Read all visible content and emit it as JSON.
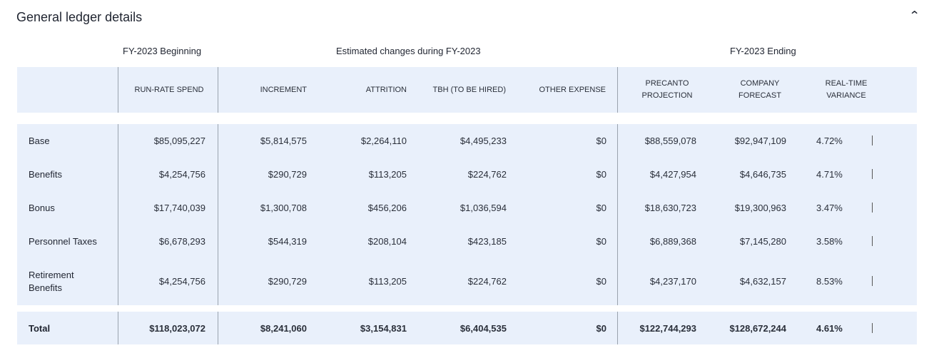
{
  "section": {
    "title": "General ledger details",
    "collapse_icon": "chevron-up-icon"
  },
  "groups": {
    "beginning": "FY-2023 Beginning",
    "changes": "Estimated changes during FY-2023",
    "ending": "FY-2023 Ending"
  },
  "columns": [
    "RUN-RATE SPEND",
    "INCREMENT",
    "ATTRITION",
    "TBH (TO BE HIRED)",
    "OTHER EXPENSE",
    "PRECANTO PROJECTION",
    "COMPANY FORECAST",
    "REAL-TIME VARIANCE"
  ],
  "columns_split": {
    "precanto": [
      "PRECANTO",
      "PROJECTION"
    ],
    "company": [
      "COMPANY",
      "FORECAST"
    ],
    "variance": [
      "REAL-TIME",
      "VARIANCE"
    ]
  },
  "rows": [
    {
      "label": "Base",
      "values": [
        "$85,095,227",
        "$5,814,575",
        "$2,264,110",
        "$4,495,233",
        "$0",
        "$88,559,078",
        "$92,947,109",
        "4.72%"
      ]
    },
    {
      "label": "Benefits",
      "values": [
        "$4,254,756",
        "$290,729",
        "$113,205",
        "$224,762",
        "$0",
        "$4,427,954",
        "$4,646,735",
        "4.71%"
      ]
    },
    {
      "label": "Bonus",
      "values": [
        "$17,740,039",
        "$1,300,708",
        "$456,206",
        "$1,036,594",
        "$0",
        "$18,630,723",
        "$19,300,963",
        "3.47%"
      ]
    },
    {
      "label": "Personnel Taxes",
      "values": [
        "$6,678,293",
        "$544,319",
        "$208,104",
        "$423,185",
        "$0",
        "$6,889,368",
        "$7,145,280",
        "3.58%"
      ]
    },
    {
      "label_lines": [
        "Retirement",
        "Benefits"
      ],
      "values": [
        "$4,254,756",
        "$290,729",
        "$113,205",
        "$224,762",
        "$0",
        "$4,237,170",
        "$4,632,157",
        "8.53%"
      ]
    }
  ],
  "total": {
    "label": "Total",
    "values": [
      "$118,023,072",
      "$8,241,060",
      "$3,154,831",
      "$6,404,535",
      "$0",
      "$122,744,293",
      "$128,672,244",
      "4.61%"
    ]
  }
}
